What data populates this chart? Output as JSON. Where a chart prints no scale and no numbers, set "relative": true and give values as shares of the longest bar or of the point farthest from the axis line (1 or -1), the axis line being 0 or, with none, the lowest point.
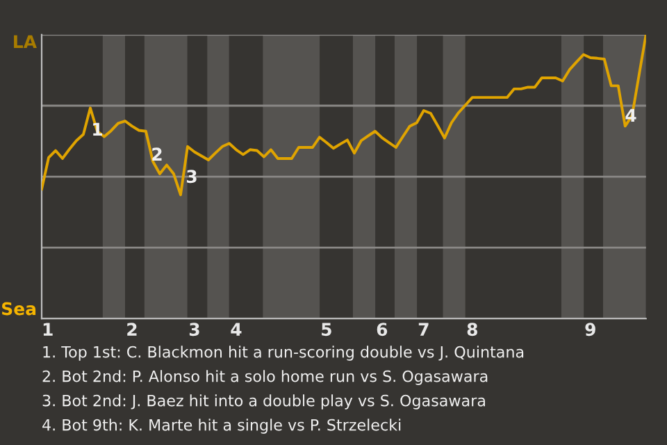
{
  "chart_data": {
    "type": "line",
    "relative": true,
    "categories": [
      "1",
      null,
      null,
      null,
      null,
      null,
      null,
      null,
      null,
      null,
      null,
      null,
      null,
      "2",
      null,
      null,
      null,
      null,
      null,
      null,
      null,
      null,
      "3",
      null,
      null,
      null,
      null,
      null,
      "4",
      null,
      null,
      null,
      null,
      null,
      null,
      null,
      null,
      null,
      null,
      null,
      null,
      "5",
      null,
      null,
      null,
      null,
      null,
      null,
      null,
      "6",
      null,
      null,
      null,
      null,
      null,
      "7",
      null,
      null,
      null,
      null,
      null,
      null,
      "8",
      null,
      null,
      null,
      null,
      null,
      null,
      null,
      null,
      null,
      null,
      null,
      null,
      null,
      null,
      null,
      null,
      "9",
      null,
      null,
      null,
      null,
      null,
      null,
      null,
      null
    ],
    "series": [
      {
        "color": "#e0a400",
        "values": [
          0.456,
          0.567,
          0.592,
          0.564,
          0.597,
          0.627,
          0.649,
          0.742,
          0.66,
          0.641,
          0.662,
          0.688,
          0.696,
          0.678,
          0.663,
          0.66,
          0.554,
          0.51,
          0.541,
          0.51,
          0.436,
          0.606,
          0.587,
          0.573,
          0.559,
          0.583,
          0.606,
          0.617,
          0.595,
          0.578,
          0.595,
          0.592,
          0.57,
          0.595,
          0.564,
          0.564,
          0.564,
          0.603,
          0.603,
          0.603,
          0.639,
          0.62,
          0.6,
          0.615,
          0.629,
          0.583,
          0.627,
          0.644,
          0.66,
          0.637,
          0.62,
          0.603,
          0.641,
          0.678,
          0.69,
          0.733,
          0.723,
          0.68,
          0.636,
          0.69,
          0.725,
          0.752,
          0.779,
          0.779,
          0.779,
          0.779,
          0.779,
          0.779,
          0.809,
          0.809,
          0.815,
          0.815,
          0.848,
          0.848,
          0.848,
          0.837,
          0.877,
          0.904,
          0.93,
          0.919,
          0.917,
          0.914,
          0.82,
          0.82,
          0.678,
          0.715,
          0.858,
          1.0
        ]
      }
    ],
    "grid": "y",
    "annotations": [
      "LA",
      "Sea",
      "1",
      "2",
      "3",
      "4",
      "1. Top 1st: C. Blackmon hit a run-scoring double vs J. Quintana",
      "2. Bot 2nd: P. Alonso hit a solo home run vs S. Ogasawara",
      "3. Bot 2nd: J. Baez hit into a double play vs S. Ogasawara",
      "4. Bot 9th: K. Marte hit a single vs P. Strzelecki"
    ]
  }
}
